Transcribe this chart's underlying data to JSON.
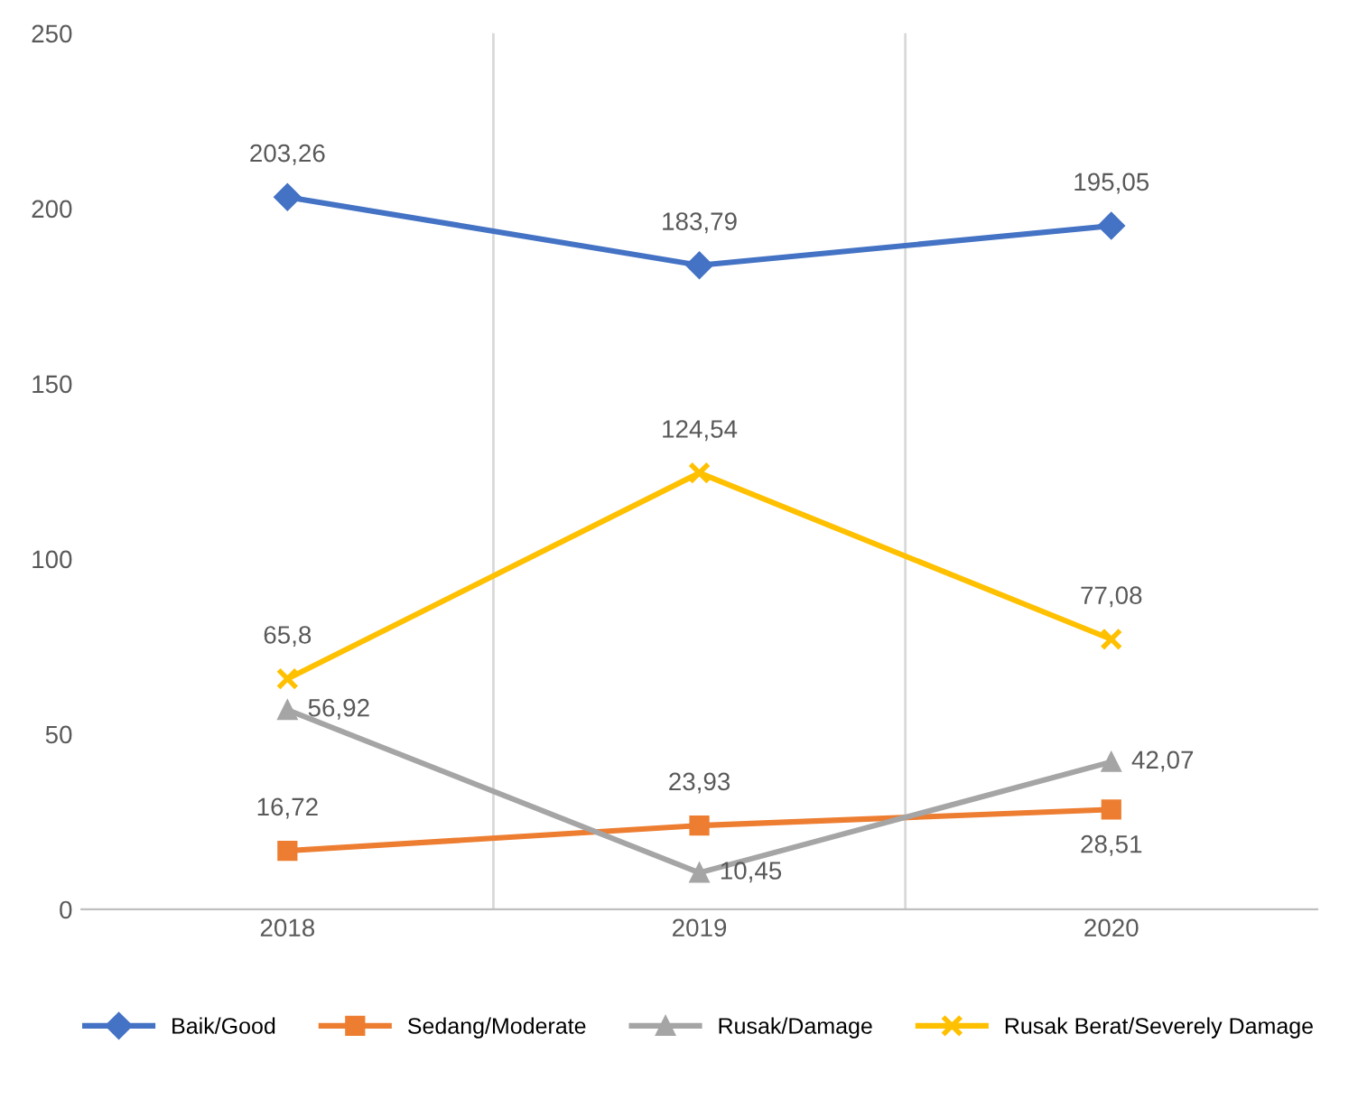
{
  "chart_data": {
    "type": "line",
    "categories": [
      "2018",
      "2019",
      "2020"
    ],
    "series": [
      {
        "name": "Baik/Good",
        "color": "#4472c4",
        "marker": "diamond",
        "values": [
          203.26,
          183.79,
          195.05
        ],
        "value_labels": [
          "203,26",
          "183,79",
          "195,05"
        ]
      },
      {
        "name": "Sedang/Moderate",
        "color": "#ed7d31",
        "marker": "square",
        "values": [
          16.72,
          23.93,
          28.51
        ],
        "value_labels": [
          "16,72",
          "23,93",
          "28,51"
        ]
      },
      {
        "name": "Rusak/Damage",
        "color": "#a5a5a5",
        "marker": "triangle",
        "values": [
          56.92,
          10.45,
          42.07
        ],
        "value_labels": [
          "56,92",
          "10,45",
          "42,07"
        ]
      },
      {
        "name": "Rusak Berat/Severely Damage",
        "color": "#ffc000",
        "marker": "cross",
        "values": [
          65.8,
          124.54,
          77.08
        ],
        "value_labels": [
          "65,8",
          "124,54",
          "77,08"
        ]
      }
    ],
    "ylim": [
      0,
      250
    ],
    "yticks": [
      0,
      50,
      100,
      150,
      200,
      250
    ],
    "grid": "x",
    "legend": "bottom"
  }
}
